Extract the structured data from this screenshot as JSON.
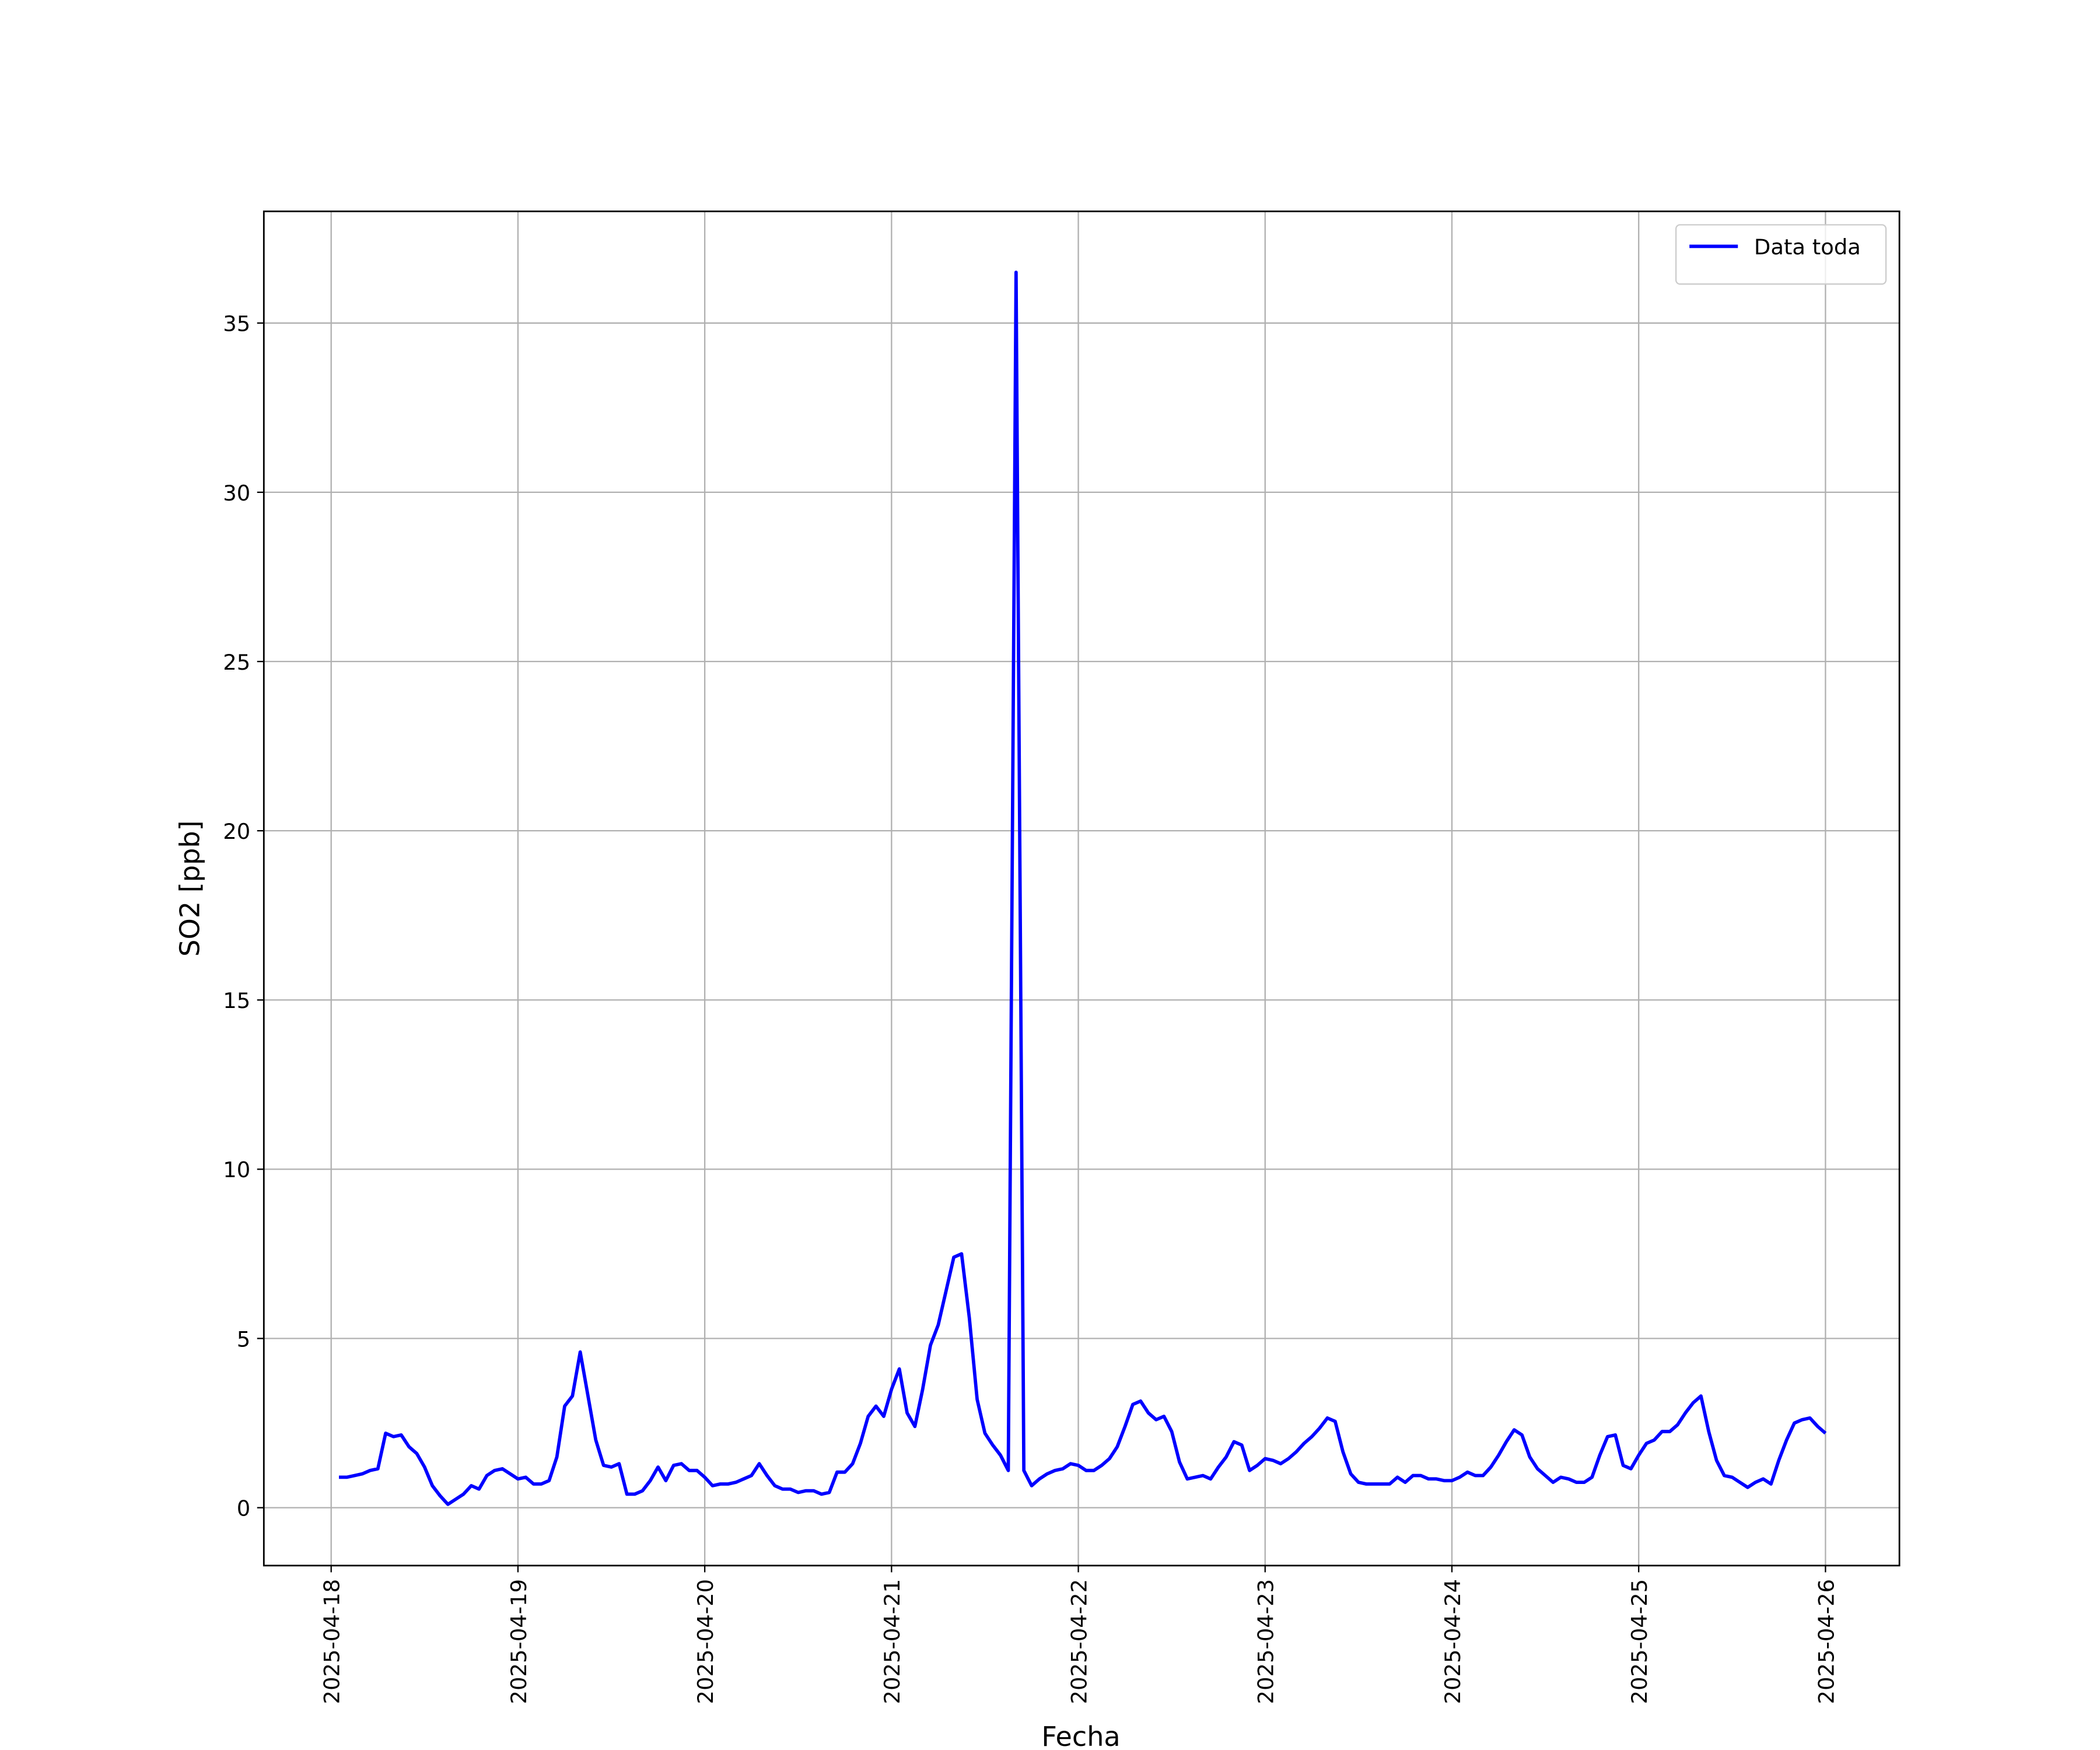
{
  "chart_data": {
    "type": "line",
    "xlabel": "Fecha",
    "ylabel": "SO2 [ppb]",
    "x": [
      "2025-04-18 01:00",
      "2025-04-18 02:00",
      "2025-04-18 03:00",
      "2025-04-18 04:00",
      "2025-04-18 05:00",
      "2025-04-18 06:00",
      "2025-04-18 07:00",
      "2025-04-18 08:00",
      "2025-04-18 09:00",
      "2025-04-18 10:00",
      "2025-04-18 11:00",
      "2025-04-18 12:00",
      "2025-04-18 13:00",
      "2025-04-18 14:00",
      "2025-04-18 15:00",
      "2025-04-18 16:00",
      "2025-04-18 17:00",
      "2025-04-18 18:00",
      "2025-04-18 19:00",
      "2025-04-18 20:00",
      "2025-04-18 21:00",
      "2025-04-18 22:00",
      "2025-04-18 23:00",
      "2025-04-19 00:00",
      "2025-04-19 01:00",
      "2025-04-19 02:00",
      "2025-04-19 03:00",
      "2025-04-19 04:00",
      "2025-04-19 05:00",
      "2025-04-19 06:00",
      "2025-04-19 07:00",
      "2025-04-19 08:00",
      "2025-04-19 09:00",
      "2025-04-19 10:00",
      "2025-04-19 11:00",
      "2025-04-19 12:00",
      "2025-04-19 13:00",
      "2025-04-19 14:00",
      "2025-04-19 15:00",
      "2025-04-19 16:00",
      "2025-04-19 17:00",
      "2025-04-19 18:00",
      "2025-04-19 19:00",
      "2025-04-19 20:00",
      "2025-04-19 21:00",
      "2025-04-19 22:00",
      "2025-04-19 23:00",
      "2025-04-20 00:00",
      "2025-04-20 01:00",
      "2025-04-20 02:00",
      "2025-04-20 03:00",
      "2025-04-20 04:00",
      "2025-04-20 05:00",
      "2025-04-20 06:00",
      "2025-04-20 07:00",
      "2025-04-20 08:00",
      "2025-04-20 09:00",
      "2025-04-20 10:00",
      "2025-04-20 11:00",
      "2025-04-20 12:00",
      "2025-04-20 13:00",
      "2025-04-20 14:00",
      "2025-04-20 15:00",
      "2025-04-20 16:00",
      "2025-04-20 17:00",
      "2025-04-20 18:00",
      "2025-04-20 19:00",
      "2025-04-20 20:00",
      "2025-04-20 21:00",
      "2025-04-20 22:00",
      "2025-04-20 23:00",
      "2025-04-21 00:00",
      "2025-04-21 01:00",
      "2025-04-21 02:00",
      "2025-04-21 03:00",
      "2025-04-21 04:00",
      "2025-04-21 05:00",
      "2025-04-21 06:00",
      "2025-04-21 07:00",
      "2025-04-21 08:00",
      "2025-04-21 09:00",
      "2025-04-21 10:00",
      "2025-04-21 11:00",
      "2025-04-21 12:00",
      "2025-04-21 13:00",
      "2025-04-21 14:00",
      "2025-04-21 15:00",
      "2025-04-21 16:00",
      "2025-04-21 17:00",
      "2025-04-21 18:00",
      "2025-04-21 19:00",
      "2025-04-21 20:00",
      "2025-04-21 21:00",
      "2025-04-21 22:00",
      "2025-04-21 23:00",
      "2025-04-22 00:00",
      "2025-04-22 01:00",
      "2025-04-22 02:00",
      "2025-04-22 03:00",
      "2025-04-22 04:00",
      "2025-04-22 05:00",
      "2025-04-22 06:00",
      "2025-04-22 07:00",
      "2025-04-22 08:00",
      "2025-04-22 09:00",
      "2025-04-22 10:00",
      "2025-04-22 11:00",
      "2025-04-22 12:00",
      "2025-04-22 13:00",
      "2025-04-22 14:00",
      "2025-04-22 15:00",
      "2025-04-22 16:00",
      "2025-04-22 17:00",
      "2025-04-22 18:00",
      "2025-04-22 19:00",
      "2025-04-22 20:00",
      "2025-04-22 21:00",
      "2025-04-22 22:00",
      "2025-04-22 23:00",
      "2025-04-23 00:00",
      "2025-04-23 01:00",
      "2025-04-23 02:00",
      "2025-04-23 03:00",
      "2025-04-23 04:00",
      "2025-04-23 05:00",
      "2025-04-23 06:00",
      "2025-04-23 07:00",
      "2025-04-23 08:00",
      "2025-04-23 09:00",
      "2025-04-23 10:00",
      "2025-04-23 11:00",
      "2025-04-23 12:00",
      "2025-04-23 13:00",
      "2025-04-23 14:00",
      "2025-04-23 15:00",
      "2025-04-23 16:00",
      "2025-04-23 17:00",
      "2025-04-23 18:00",
      "2025-04-23 19:00",
      "2025-04-23 20:00",
      "2025-04-23 21:00",
      "2025-04-23 22:00",
      "2025-04-23 23:00",
      "2025-04-24 00:00",
      "2025-04-24 01:00",
      "2025-04-24 02:00",
      "2025-04-24 03:00",
      "2025-04-24 04:00",
      "2025-04-24 05:00",
      "2025-04-24 06:00",
      "2025-04-24 07:00",
      "2025-04-24 08:00",
      "2025-04-24 09:00",
      "2025-04-24 10:00",
      "2025-04-24 11:00",
      "2025-04-24 12:00",
      "2025-04-24 13:00",
      "2025-04-24 14:00",
      "2025-04-24 15:00",
      "2025-04-24 16:00",
      "2025-04-24 17:00",
      "2025-04-24 18:00",
      "2025-04-24 19:00",
      "2025-04-24 20:00",
      "2025-04-24 21:00",
      "2025-04-24 22:00",
      "2025-04-24 23:00",
      "2025-04-25 00:00",
      "2025-04-25 01:00",
      "2025-04-25 02:00",
      "2025-04-25 03:00",
      "2025-04-25 04:00",
      "2025-04-25 05:00",
      "2025-04-25 06:00",
      "2025-04-25 07:00",
      "2025-04-25 08:00",
      "2025-04-25 09:00",
      "2025-04-25 10:00",
      "2025-04-25 11:00",
      "2025-04-25 12:00",
      "2025-04-25 13:00",
      "2025-04-25 14:00",
      "2025-04-25 15:00",
      "2025-04-25 16:00",
      "2025-04-25 17:00",
      "2025-04-25 18:00",
      "2025-04-25 19:00",
      "2025-04-25 20:00",
      "2025-04-25 21:00",
      "2025-04-25 22:00",
      "2025-04-25 23:00",
      "2025-04-26 00:00"
    ],
    "series": [
      {
        "name": "Data toda",
        "color": "#0000ff",
        "values": [
          0.9,
          0.9,
          0.95,
          1.0,
          1.1,
          1.15,
          2.2,
          2.1,
          2.15,
          1.8,
          1.6,
          1.2,
          0.65,
          0.35,
          0.1,
          0.25,
          0.4,
          0.65,
          0.55,
          0.95,
          1.1,
          1.15,
          1.0,
          0.85,
          0.9,
          0.7,
          0.7,
          0.8,
          1.5,
          3.0,
          3.3,
          4.6,
          3.3,
          2.0,
          1.25,
          1.2,
          1.3,
          0.4,
          0.4,
          0.5,
          0.8,
          1.2,
          0.8,
          1.25,
          1.3,
          1.1,
          1.1,
          0.9,
          0.65,
          0.7,
          0.7,
          0.75,
          0.85,
          0.95,
          1.3,
          0.95,
          0.65,
          0.55,
          0.55,
          0.45,
          0.5,
          0.5,
          0.4,
          0.45,
          1.05,
          1.05,
          1.3,
          1.9,
          2.7,
          3.0,
          2.7,
          3.5,
          4.1,
          2.8,
          2.4,
          3.5,
          4.8,
          5.4,
          6.4,
          7.4,
          7.5,
          5.6,
          3.2,
          2.2,
          1.85,
          1.55,
          1.1,
          36.5,
          1.1,
          0.65,
          0.85,
          1.0,
          1.1,
          1.15,
          1.3,
          1.25,
          1.1,
          1.1,
          1.25,
          1.45,
          1.8,
          2.4,
          3.05,
          3.15,
          2.8,
          2.6,
          2.7,
          2.25,
          1.35,
          0.85,
          0.9,
          0.95,
          0.85,
          1.2,
          1.5,
          1.95,
          1.85,
          1.1,
          1.25,
          1.45,
          1.4,
          1.3,
          1.45,
          1.65,
          1.9,
          2.1,
          2.35,
          2.65,
          2.55,
          1.65,
          1.0,
          0.75,
          0.7,
          0.7,
          0.7,
          0.7,
          0.9,
          0.75,
          0.95,
          0.95,
          0.85,
          0.85,
          0.8,
          0.8,
          0.9,
          1.05,
          0.95,
          0.95,
          1.2,
          1.55,
          1.95,
          2.3,
          2.15,
          1.5,
          1.15,
          0.95,
          0.75,
          0.9,
          0.85,
          0.75,
          0.75,
          0.9,
          1.55,
          2.1,
          2.15,
          1.25,
          1.15,
          1.55,
          1.9,
          2.0,
          2.25,
          2.25,
          2.45,
          2.8,
          3.1,
          3.3,
          2.25,
          1.4,
          0.95,
          0.9,
          0.75,
          0.6,
          0.75,
          0.85,
          0.7,
          1.4,
          2.0,
          2.5,
          2.6,
          2.65,
          2.4,
          2.2
        ]
      }
    ],
    "xlim": [
      "2025-04-17 15:21",
      "2025-04-26 09:30"
    ],
    "xticks": [
      "2025-04-18",
      "2025-04-19",
      "2025-04-20",
      "2025-04-21",
      "2025-04-22",
      "2025-04-23",
      "2025-04-24",
      "2025-04-25",
      "2025-04-26"
    ],
    "ylim": [
      -1.71,
      38.3
    ],
    "yticks": [
      0,
      5,
      10,
      15,
      20,
      25,
      30,
      35
    ],
    "grid": true,
    "legend": "upper right"
  }
}
